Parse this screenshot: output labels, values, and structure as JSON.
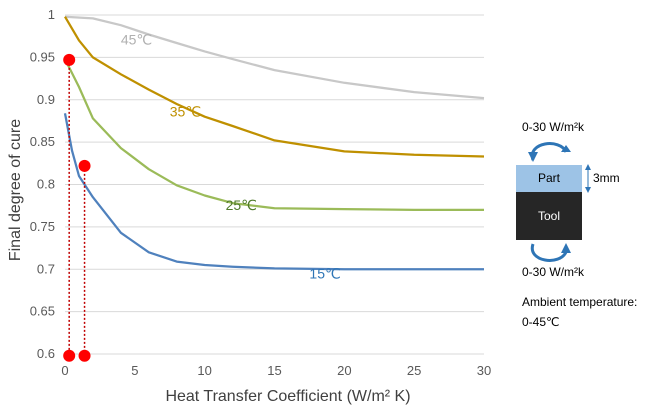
{
  "chart_data": {
    "type": "line",
    "xlabel": "Heat Transfer Coefficient (W/m² K)",
    "ylabel": "Final degree of cure",
    "xlim": [
      0,
      30
    ],
    "ylim": [
      0.6,
      1.0
    ],
    "x_ticks": [
      0,
      5,
      10,
      15,
      20,
      25,
      30
    ],
    "y_ticks": [
      0.6,
      0.65,
      0.7,
      0.75,
      0.8,
      0.85,
      0.9,
      0.95,
      1
    ],
    "grid": "horizontal",
    "series": [
      {
        "name": "45℃",
        "color": "#c8c8c8",
        "x": [
          0,
          2,
          4,
          6,
          8,
          10,
          12,
          15,
          20,
          25,
          30
        ],
        "y": [
          0.998,
          0.996,
          0.988,
          0.977,
          0.967,
          0.957,
          0.948,
          0.935,
          0.92,
          0.909,
          0.902
        ]
      },
      {
        "name": "35℃",
        "color": "#bf9000",
        "x": [
          0,
          1,
          2,
          4,
          6,
          8,
          10,
          12,
          15,
          20,
          25,
          30
        ],
        "y": [
          0.998,
          0.97,
          0.95,
          0.93,
          0.912,
          0.895,
          0.88,
          0.869,
          0.852,
          0.839,
          0.835,
          0.833
        ]
      },
      {
        "name": "25℃",
        "color": "#9bbb59",
        "x": [
          0,
          1,
          2,
          4,
          6,
          8,
          10,
          12,
          15,
          20,
          25,
          30
        ],
        "y": [
          0.948,
          0.915,
          0.878,
          0.843,
          0.818,
          0.799,
          0.787,
          0.778,
          0.772,
          0.771,
          0.77,
          0.77
        ]
      },
      {
        "name": "15℃",
        "color": "#4f81bd",
        "x": [
          0,
          0.5,
          1,
          2,
          4,
          6,
          8,
          10,
          12,
          15,
          20,
          25,
          30
        ],
        "y": [
          0.884,
          0.84,
          0.81,
          0.785,
          0.743,
          0.72,
          0.709,
          0.705,
          0.703,
          0.701,
          0.7,
          0.7,
          0.7
        ]
      }
    ],
    "markers": [
      {
        "x": 0.3,
        "y": 0.947,
        "color": "#ff0000"
      },
      {
        "x": 1.4,
        "y": 0.822,
        "color": "#ff0000"
      },
      {
        "x": 0.3,
        "y": 0.598,
        "color": "#ff0000"
      },
      {
        "x": 1.4,
        "y": 0.598,
        "color": "#ff0000"
      }
    ],
    "drop_lines": [
      {
        "x": 0.3,
        "y_from": 0.947,
        "y_to": 0.598,
        "color": "#c00000"
      },
      {
        "x": 1.4,
        "y_from": 0.822,
        "y_to": 0.598,
        "color": "#c00000"
      }
    ]
  },
  "side_panel": {
    "top_label": "0-30 W/m²k",
    "bottom_label": "0-30 W/m²k",
    "part_label": "Part",
    "tool_label": "Tool",
    "thickness_label": "3mm",
    "ambient_line1": "Ambient temperature:",
    "ambient_line2": "0-45℃",
    "part_color": "#9dc3e6",
    "tool_color": "#262626",
    "arrow_color": "#2e75b6"
  }
}
